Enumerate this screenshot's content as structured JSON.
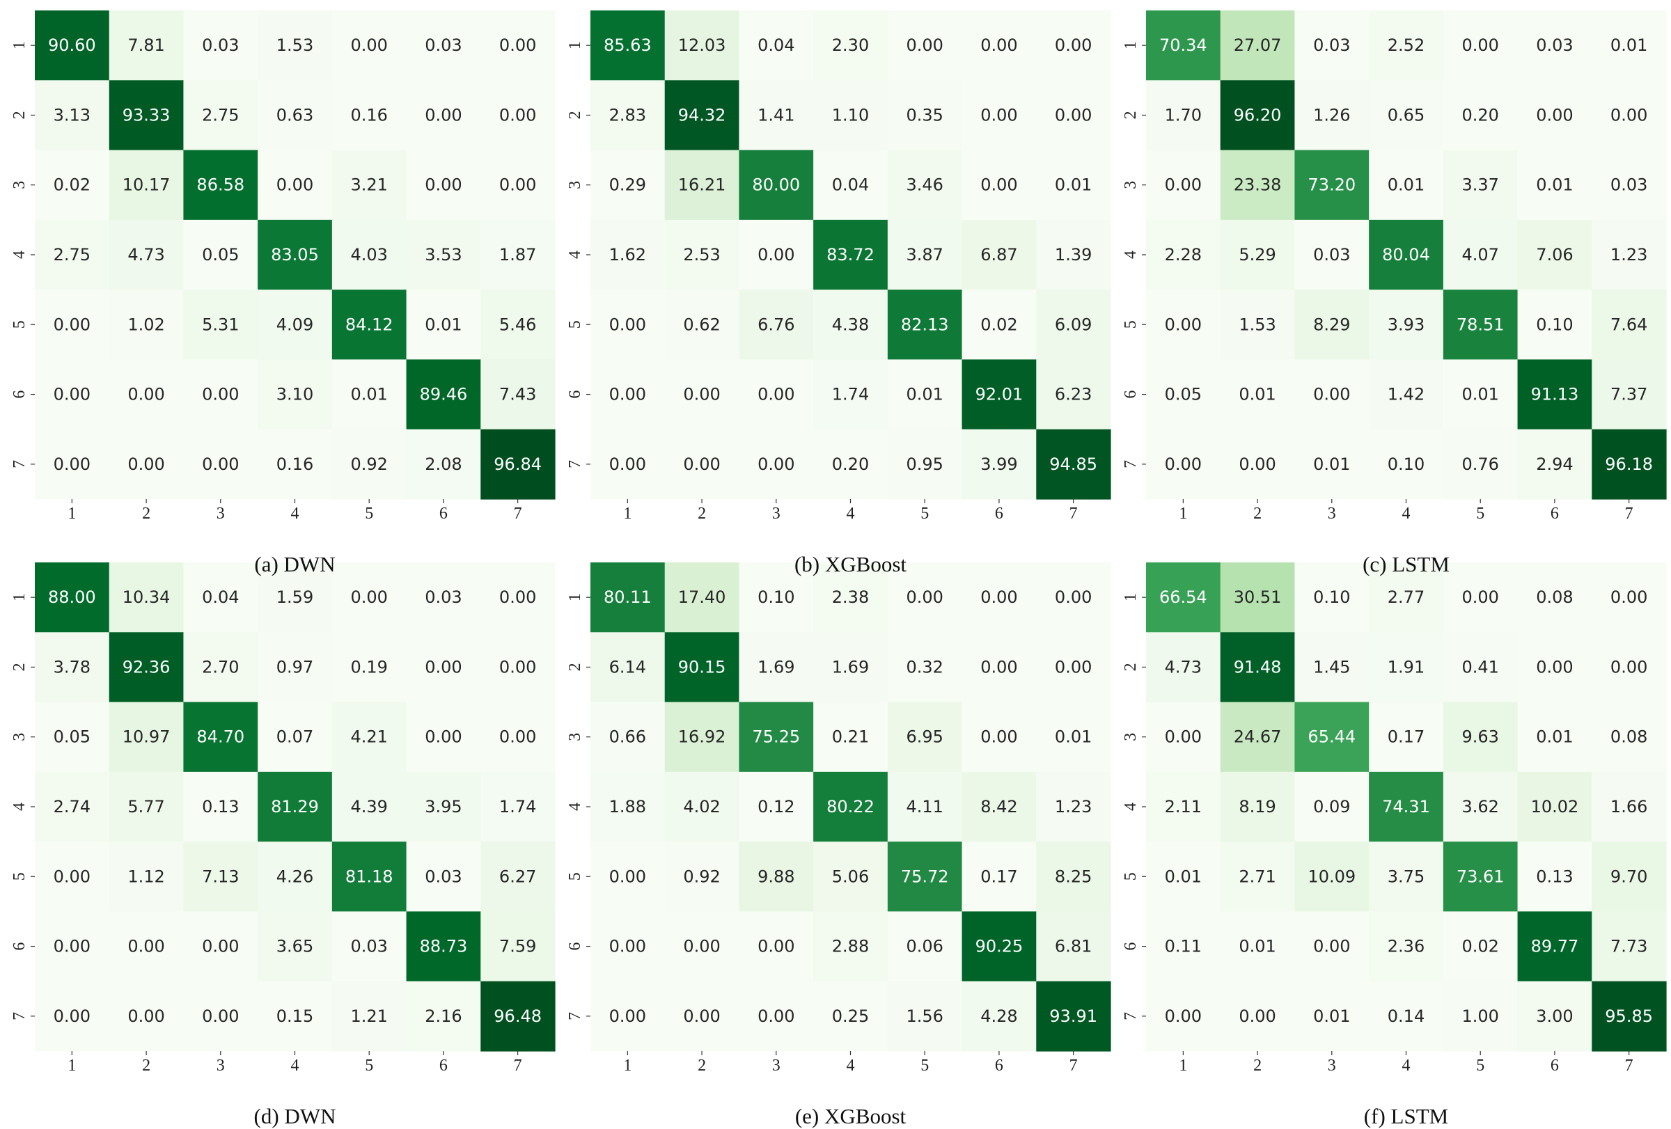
{
  "chart_data": [
    {
      "type": "heatmap",
      "caption": "(a) DWN",
      "x_ticks": [
        "1",
        "2",
        "3",
        "4",
        "5",
        "6",
        "7"
      ],
      "y_ticks": [
        "1",
        "2",
        "3",
        "4",
        "5",
        "6",
        "7"
      ],
      "values": [
        [
          "90.60",
          "7.81",
          "0.03",
          "1.53",
          "0.00",
          "0.03",
          "0.00"
        ],
        [
          "3.13",
          "93.33",
          "2.75",
          "0.63",
          "0.16",
          "0.00",
          "0.00"
        ],
        [
          "0.02",
          "10.17",
          "86.58",
          "0.00",
          "3.21",
          "0.00",
          "0.00"
        ],
        [
          "2.75",
          "4.73",
          "0.05",
          "83.05",
          "4.03",
          "3.53",
          "1.87"
        ],
        [
          "0.00",
          "1.02",
          "5.31",
          "4.09",
          "84.12",
          "0.01",
          "5.46"
        ],
        [
          "0.00",
          "0.00",
          "0.00",
          "3.10",
          "0.01",
          "89.46",
          "7.43"
        ],
        [
          "0.00",
          "0.00",
          "0.00",
          "0.16",
          "0.92",
          "2.08",
          "96.84"
        ]
      ]
    },
    {
      "type": "heatmap",
      "caption": "(b) XGBoost",
      "x_ticks": [
        "1",
        "2",
        "3",
        "4",
        "5",
        "6",
        "7"
      ],
      "y_ticks": [
        "1",
        "2",
        "3",
        "4",
        "5",
        "6",
        "7"
      ],
      "values": [
        [
          "85.63",
          "12.03",
          "0.04",
          "2.30",
          "0.00",
          "0.00",
          "0.00"
        ],
        [
          "2.83",
          "94.32",
          "1.41",
          "1.10",
          "0.35",
          "0.00",
          "0.00"
        ],
        [
          "0.29",
          "16.21",
          "80.00",
          "0.04",
          "3.46",
          "0.00",
          "0.01"
        ],
        [
          "1.62",
          "2.53",
          "0.00",
          "83.72",
          "3.87",
          "6.87",
          "1.39"
        ],
        [
          "0.00",
          "0.62",
          "6.76",
          "4.38",
          "82.13",
          "0.02",
          "6.09"
        ],
        [
          "0.00",
          "0.00",
          "0.00",
          "1.74",
          "0.01",
          "92.01",
          "6.23"
        ],
        [
          "0.00",
          "0.00",
          "0.00",
          "0.20",
          "0.95",
          "3.99",
          "94.85"
        ]
      ]
    },
    {
      "type": "heatmap",
      "caption": "(c) LSTM",
      "x_ticks": [
        "1",
        "2",
        "3",
        "4",
        "5",
        "6",
        "7"
      ],
      "y_ticks": [
        "1",
        "2",
        "3",
        "4",
        "5",
        "6",
        "7"
      ],
      "values": [
        [
          "70.34",
          "27.07",
          "0.03",
          "2.52",
          "0.00",
          "0.03",
          "0.01"
        ],
        [
          "1.70",
          "96.20",
          "1.26",
          "0.65",
          "0.20",
          "0.00",
          "0.00"
        ],
        [
          "0.00",
          "23.38",
          "73.20",
          "0.01",
          "3.37",
          "0.01",
          "0.03"
        ],
        [
          "2.28",
          "5.29",
          "0.03",
          "80.04",
          "4.07",
          "7.06",
          "1.23"
        ],
        [
          "0.00",
          "1.53",
          "8.29",
          "3.93",
          "78.51",
          "0.10",
          "7.64"
        ],
        [
          "0.05",
          "0.01",
          "0.00",
          "1.42",
          "0.01",
          "91.13",
          "7.37"
        ],
        [
          "0.00",
          "0.00",
          "0.01",
          "0.10",
          "0.76",
          "2.94",
          "96.18"
        ]
      ]
    },
    {
      "type": "heatmap",
      "caption": "(d) DWN",
      "x_ticks": [
        "1",
        "2",
        "3",
        "4",
        "5",
        "6",
        "7"
      ],
      "y_ticks": [
        "1",
        "2",
        "3",
        "4",
        "5",
        "6",
        "7"
      ],
      "values": [
        [
          "88.00",
          "10.34",
          "0.04",
          "1.59",
          "0.00",
          "0.03",
          "0.00"
        ],
        [
          "3.78",
          "92.36",
          "2.70",
          "0.97",
          "0.19",
          "0.00",
          "0.00"
        ],
        [
          "0.05",
          "10.97",
          "84.70",
          "0.07",
          "4.21",
          "0.00",
          "0.00"
        ],
        [
          "2.74",
          "5.77",
          "0.13",
          "81.29",
          "4.39",
          "3.95",
          "1.74"
        ],
        [
          "0.00",
          "1.12",
          "7.13",
          "4.26",
          "81.18",
          "0.03",
          "6.27"
        ],
        [
          "0.00",
          "0.00",
          "0.00",
          "3.65",
          "0.03",
          "88.73",
          "7.59"
        ],
        [
          "0.00",
          "0.00",
          "0.00",
          "0.15",
          "1.21",
          "2.16",
          "96.48"
        ]
      ]
    },
    {
      "type": "heatmap",
      "caption": "(e) XGBoost",
      "x_ticks": [
        "1",
        "2",
        "3",
        "4",
        "5",
        "6",
        "7"
      ],
      "y_ticks": [
        "1",
        "2",
        "3",
        "4",
        "5",
        "6",
        "7"
      ],
      "values": [
        [
          "80.11",
          "17.40",
          "0.10",
          "2.38",
          "0.00",
          "0.00",
          "0.00"
        ],
        [
          "6.14",
          "90.15",
          "1.69",
          "1.69",
          "0.32",
          "0.00",
          "0.00"
        ],
        [
          "0.66",
          "16.92",
          "75.25",
          "0.21",
          "6.95",
          "0.00",
          "0.01"
        ],
        [
          "1.88",
          "4.02",
          "0.12",
          "80.22",
          "4.11",
          "8.42",
          "1.23"
        ],
        [
          "0.00",
          "0.92",
          "9.88",
          "5.06",
          "75.72",
          "0.17",
          "8.25"
        ],
        [
          "0.00",
          "0.00",
          "0.00",
          "2.88",
          "0.06",
          "90.25",
          "6.81"
        ],
        [
          "0.00",
          "0.00",
          "0.00",
          "0.25",
          "1.56",
          "4.28",
          "93.91"
        ]
      ]
    },
    {
      "type": "heatmap",
      "caption": "(f) LSTM",
      "x_ticks": [
        "1",
        "2",
        "3",
        "4",
        "5",
        "6",
        "7"
      ],
      "y_ticks": [
        "1",
        "2",
        "3",
        "4",
        "5",
        "6",
        "7"
      ],
      "values": [
        [
          "66.54",
          "30.51",
          "0.10",
          "2.77",
          "0.00",
          "0.08",
          "0.00"
        ],
        [
          "4.73",
          "91.48",
          "1.45",
          "1.91",
          "0.41",
          "0.00",
          "0.00"
        ],
        [
          "0.00",
          "24.67",
          "65.44",
          "0.17",
          "9.63",
          "0.01",
          "0.08"
        ],
        [
          "2.11",
          "8.19",
          "0.09",
          "74.31",
          "3.62",
          "10.02",
          "1.66"
        ],
        [
          "0.01",
          "2.71",
          "10.09",
          "3.75",
          "73.61",
          "0.13",
          "9.70"
        ],
        [
          "0.11",
          "0.01",
          "0.00",
          "2.36",
          "0.02",
          "89.77",
          "7.73"
        ],
        [
          "0.00",
          "0.00",
          "0.01",
          "0.14",
          "1.00",
          "3.00",
          "95.85"
        ]
      ]
    }
  ],
  "colors": {
    "colormap": "Greens",
    "low": "#f7fcf5",
    "high": "#00441b",
    "text_dark": "#262626",
    "text_light": "#ffffff"
  },
  "value_range": [
    0,
    100
  ]
}
